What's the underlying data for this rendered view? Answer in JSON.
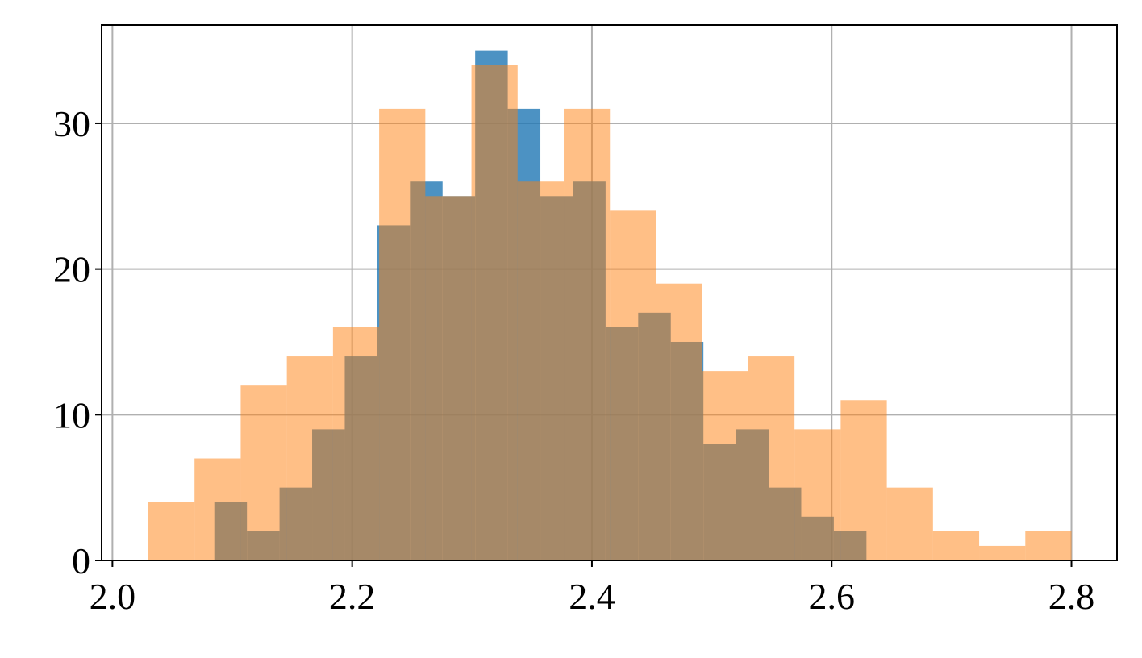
{
  "chart_data": {
    "type": "histogram",
    "series": [
      {
        "color": "#1f77b4",
        "opacity": 0.8,
        "bins": [
          2.085,
          2.1122,
          2.1394,
          2.1666,
          2.1938,
          2.221,
          2.2482,
          2.2754,
          2.3026,
          2.3298,
          2.357,
          2.3842,
          2.4114,
          2.4386,
          2.4658,
          2.493,
          2.5202,
          2.5474,
          2.5746,
          2.6018,
          2.629
        ],
        "values": [
          4,
          2,
          5,
          9,
          14,
          23,
          26,
          25,
          35,
          31,
          25,
          26,
          16,
          17,
          15,
          8,
          9,
          5,
          3,
          2
        ]
      },
      {
        "color": "#ff7f0e",
        "opacity": 0.5,
        "bins": [
          2.03,
          2.0685,
          2.107,
          2.1455,
          2.184,
          2.2225,
          2.261,
          2.2995,
          2.338,
          2.3765,
          2.415,
          2.4535,
          2.492,
          2.5305,
          2.569,
          2.6075,
          2.646,
          2.6845,
          2.723,
          2.7615,
          2.8
        ],
        "values": [
          4,
          7,
          12,
          14,
          16,
          31,
          25,
          34,
          26,
          31,
          24,
          19,
          13,
          14,
          9,
          11,
          5,
          2,
          1,
          2
        ]
      }
    ],
    "xlim": [
      1.991,
      2.838
    ],
    "ylim": [
      0,
      36.75
    ],
    "xticks": [
      {
        "value": 2,
        "label": "2.0"
      },
      2.2,
      2.4,
      2.6,
      2.8
    ],
    "yticks": [
      0,
      10,
      20,
      30
    ],
    "grid": true
  }
}
